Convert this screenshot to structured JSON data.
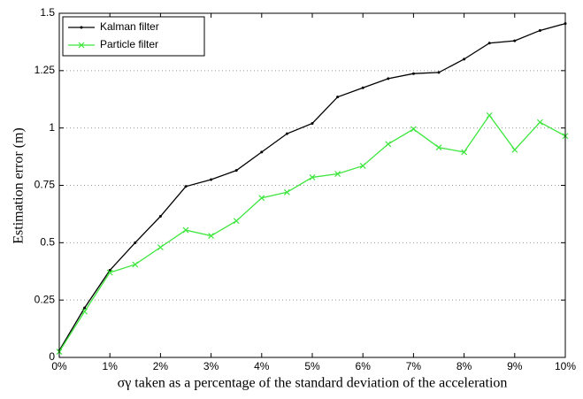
{
  "chart_data": {
    "type": "line",
    "xlabel": "σγ taken as a percentage of the standard deviation of the acceleration",
    "ylabel": "Estimation error (m)",
    "x": [
      0,
      0.5,
      1,
      1.5,
      2,
      2.5,
      3,
      3.5,
      4,
      4.5,
      5,
      5.5,
      6,
      6.5,
      7,
      7.5,
      8,
      8.5,
      9,
      9.5,
      10
    ],
    "series": [
      {
        "name": "Kalman filter",
        "color": "#000000",
        "marker": "dot",
        "values": [
          0.03,
          0.216,
          0.38,
          0.5,
          0.615,
          0.745,
          0.775,
          0.815,
          0.895,
          0.975,
          1.02,
          1.135,
          1.175,
          1.215,
          1.237,
          1.242,
          1.3,
          1.37,
          1.38,
          1.425,
          1.455
        ]
      },
      {
        "name": "Particle filter",
        "color": "#3ee63e",
        "marker": "x",
        "values": [
          0.025,
          0.2,
          0.37,
          0.405,
          0.48,
          0.555,
          0.53,
          0.595,
          0.695,
          0.72,
          0.785,
          0.8,
          0.835,
          0.93,
          0.995,
          0.915,
          0.895,
          1.055,
          0.905,
          1.025,
          0.965
        ]
      }
    ],
    "xlim": [
      0,
      10
    ],
    "xticks": [
      {
        "value": 0,
        "label": "0%"
      },
      {
        "value": 1,
        "label": "1%"
      },
      {
        "value": 2,
        "label": "2%"
      },
      {
        "value": 3,
        "label": "3%"
      },
      {
        "value": 4,
        "label": "4%"
      },
      {
        "value": 5,
        "label": "5%"
      },
      {
        "value": 6,
        "label": "6%"
      },
      {
        "value": 7,
        "label": "7%"
      },
      {
        "value": 8,
        "label": "8%"
      },
      {
        "value": 9,
        "label": "9%"
      },
      {
        "value": 10,
        "label": "10%"
      }
    ],
    "ylim": [
      0,
      1.5
    ],
    "yticks": [
      0,
      0.25,
      0.5,
      0.75,
      1,
      1.25,
      1.5
    ],
    "grid": "y",
    "legend": "upper left"
  }
}
